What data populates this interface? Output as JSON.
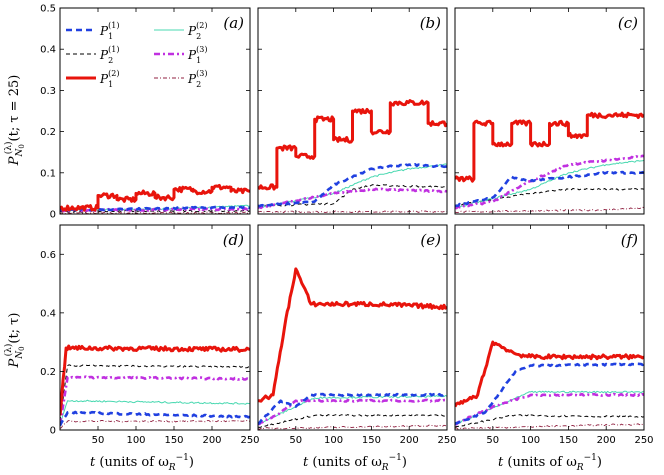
{
  "chart_data": {
    "type": "line",
    "figure": "6-panel grid of occupation probabilities P vs time",
    "series_styles": [
      {
        "key": "P1_1",
        "name": "P_1^(1)",
        "color": "#2040e0",
        "dash": "6,4",
        "width": 2.6
      },
      {
        "key": "P2_1",
        "name": "P_2^(1)",
        "color": "#000000",
        "dash": "4,3",
        "width": 1.0
      },
      {
        "key": "P1_2",
        "name": "P_1^(2)",
        "color": "#e8140c",
        "dash": "",
        "width": 3.0
      },
      {
        "key": "P2_2",
        "name": "P_2^(2)",
        "color": "#48d8b0",
        "dash": "",
        "width": 1.0
      },
      {
        "key": "P1_3",
        "name": "P_1^(3)",
        "color": "#c030e0",
        "dash": "6,3,2,3",
        "width": 2.6
      },
      {
        "key": "P2_3",
        "name": "P_2^(3)",
        "color": "#902040",
        "dash": "4,2,1,2",
        "width": 0.9
      }
    ],
    "legend": [
      {
        "base": "P",
        "sub": "1",
        "sup": "(1)"
      },
      {
        "base": "P",
        "sub": "2",
        "sup": "(1)"
      },
      {
        "base": "P",
        "sub": "1",
        "sup": "(2)"
      },
      {
        "base": "P",
        "sub": "2",
        "sup": "(2)"
      },
      {
        "base": "P",
        "sub": "1",
        "sup": "(3)"
      },
      {
        "base": "P",
        "sub": "2",
        "sup": "(3)"
      }
    ],
    "rows": [
      {
        "ylabel": "P_N0^(λ)(t; τ = 25)",
        "ylim": [
          0,
          0.5
        ],
        "yticks": [
          "0",
          "0.1",
          "0.2",
          "0.3",
          "0.4",
          "0.5"
        ],
        "ytick_values": [
          0,
          0.1,
          0.2,
          0.3,
          0.4,
          0.5
        ]
      },
      {
        "ylabel": "P_N0^(λ)(t; τ)",
        "ylim": [
          0,
          0.7
        ],
        "yticks": [
          "0",
          "0.2",
          "0.4",
          "0.6"
        ],
        "ytick_values": [
          0,
          0.2,
          0.4,
          0.6
        ]
      }
    ],
    "xlim": [
      0,
      250
    ],
    "xticks": [
      "50",
      "100",
      "150",
      "200",
      "250"
    ],
    "xtick_values": [
      50,
      100,
      150,
      200,
      250
    ],
    "xlabel": "t (units of ω_R^-1)",
    "panels": [
      {
        "label": "(a)",
        "row": 0,
        "col": 0,
        "series": {
          "P1_2": [
            [
              0,
              0.015
            ],
            [
              50,
              0.015
            ],
            [
              50,
              0.045
            ],
            [
              75,
              0.045
            ],
            [
              75,
              0.035
            ],
            [
              100,
              0.035
            ],
            [
              100,
              0.05
            ],
            [
              125,
              0.05
            ],
            [
              125,
              0.04
            ],
            [
              150,
              0.04
            ],
            [
              150,
              0.06
            ],
            [
              175,
              0.06
            ],
            [
              175,
              0.055
            ],
            [
              200,
              0.055
            ],
            [
              200,
              0.065
            ],
            [
              225,
              0.065
            ],
            [
              225,
              0.055
            ],
            [
              250,
              0.055
            ]
          ],
          "P1_1": [
            [
              0,
              0.01
            ],
            [
              100,
              0.012
            ],
            [
              150,
              0.014
            ],
            [
              200,
              0.016
            ],
            [
              250,
              0.015
            ]
          ],
          "P2_1": [
            [
              0,
              0.006
            ],
            [
              250,
              0.008
            ]
          ],
          "P2_2": [
            [
              0,
              0.008
            ],
            [
              125,
              0.012
            ],
            [
              250,
              0.02
            ]
          ],
          "P1_3": [
            [
              0,
              0.009
            ],
            [
              250,
              0.012
            ]
          ],
          "P2_3": [
            [
              0,
              0.002
            ],
            [
              250,
              0.003
            ]
          ]
        }
      },
      {
        "label": "(b)",
        "row": 0,
        "col": 1,
        "series": {
          "P1_2": [
            [
              0,
              0.065
            ],
            [
              25,
              0.065
            ],
            [
              25,
              0.16
            ],
            [
              50,
              0.16
            ],
            [
              50,
              0.14
            ],
            [
              75,
              0.14
            ],
            [
              75,
              0.23
            ],
            [
              100,
              0.23
            ],
            [
              100,
              0.18
            ],
            [
              125,
              0.18
            ],
            [
              125,
              0.25
            ],
            [
              150,
              0.25
            ],
            [
              150,
              0.2
            ],
            [
              175,
              0.2
            ],
            [
              175,
              0.27
            ],
            [
              225,
              0.27
            ],
            [
              225,
              0.22
            ],
            [
              250,
              0.22
            ]
          ],
          "P1_1": [
            [
              0,
              0.02
            ],
            [
              75,
              0.03
            ],
            [
              100,
              0.07
            ],
            [
              125,
              0.09
            ],
            [
              150,
              0.11
            ],
            [
              200,
              0.12
            ],
            [
              250,
              0.115
            ]
          ],
          "P2_1": [
            [
              0,
              0.02
            ],
            [
              100,
              0.025
            ],
            [
              125,
              0.06
            ],
            [
              150,
              0.07
            ],
            [
              250,
              0.065
            ]
          ],
          "P2_2": [
            [
              0,
              0.015
            ],
            [
              100,
              0.05
            ],
            [
              150,
              0.09
            ],
            [
              200,
              0.11
            ],
            [
              250,
              0.12
            ]
          ],
          "P1_3": [
            [
              0,
              0.015
            ],
            [
              100,
              0.05
            ],
            [
              150,
              0.06
            ],
            [
              250,
              0.055
            ]
          ],
          "P2_3": [
            [
              0,
              0.005
            ],
            [
              250,
              0.006
            ]
          ]
        }
      },
      {
        "label": "(c)",
        "row": 0,
        "col": 2,
        "series": {
          "P1_2": [
            [
              0,
              0.085
            ],
            [
              25,
              0.085
            ],
            [
              25,
              0.22
            ],
            [
              50,
              0.22
            ],
            [
              50,
              0.17
            ],
            [
              75,
              0.17
            ],
            [
              75,
              0.22
            ],
            [
              100,
              0.22
            ],
            [
              100,
              0.17
            ],
            [
              125,
              0.17
            ],
            [
              125,
              0.22
            ],
            [
              150,
              0.22
            ],
            [
              150,
              0.19
            ],
            [
              175,
              0.19
            ],
            [
              175,
              0.24
            ],
            [
              225,
              0.24
            ],
            [
              225,
              0.24
            ],
            [
              250,
              0.24
            ]
          ],
          "P1_1": [
            [
              0,
              0.02
            ],
            [
              50,
              0.04
            ],
            [
              75,
              0.09
            ],
            [
              100,
              0.08
            ],
            [
              150,
              0.09
            ],
            [
              200,
              0.1
            ],
            [
              250,
              0.1
            ]
          ],
          "P2_1": [
            [
              0,
              0.02
            ],
            [
              100,
              0.05
            ],
            [
              150,
              0.06
            ],
            [
              250,
              0.06
            ]
          ],
          "P2_2": [
            [
              0,
              0.015
            ],
            [
              100,
              0.06
            ],
            [
              150,
              0.1
            ],
            [
              200,
              0.12
            ],
            [
              250,
              0.13
            ]
          ],
          "P1_3": [
            [
              0,
              0.015
            ],
            [
              50,
              0.03
            ],
            [
              100,
              0.08
            ],
            [
              150,
              0.12
            ],
            [
              250,
              0.14
            ]
          ],
          "P2_3": [
            [
              0,
              0.005
            ],
            [
              200,
              0.01
            ],
            [
              250,
              0.015
            ]
          ]
        }
      },
      {
        "label": "(d)",
        "row": 1,
        "col": 0,
        "series": {
          "P1_2": [
            [
              0,
              0.05
            ],
            [
              8,
              0.28
            ],
            [
              15,
              0.28
            ],
            [
              250,
              0.275
            ]
          ],
          "P2_1": [
            [
              0,
              0.03
            ],
            [
              10,
              0.22
            ],
            [
              250,
              0.215
            ]
          ],
          "P1_3": [
            [
              0,
              0.02
            ],
            [
              10,
              0.18
            ],
            [
              250,
              0.175
            ]
          ],
          "P2_2": [
            [
              0,
              0.02
            ],
            [
              10,
              0.1
            ],
            [
              250,
              0.09
            ]
          ],
          "P1_1": [
            [
              0,
              0.015
            ],
            [
              10,
              0.06
            ],
            [
              250,
              0.045
            ]
          ],
          "P2_3": [
            [
              0,
              0.005
            ],
            [
              10,
              0.03
            ],
            [
              250,
              0.03
            ]
          ]
        }
      },
      {
        "label": "(e)",
        "row": 1,
        "col": 1,
        "series": {
          "P1_2": [
            [
              0,
              0.1
            ],
            [
              20,
              0.12
            ],
            [
              35,
              0.35
            ],
            [
              50,
              0.55
            ],
            [
              70,
              0.43
            ],
            [
              150,
              0.43
            ],
            [
              250,
              0.42
            ]
          ],
          "P1_1": [
            [
              0,
              0.02
            ],
            [
              30,
              0.1
            ],
            [
              50,
              0.08
            ],
            [
              70,
              0.12
            ],
            [
              250,
              0.12
            ]
          ],
          "P1_3": [
            [
              0,
              0.02
            ],
            [
              30,
              0.06
            ],
            [
              50,
              0.1
            ],
            [
              75,
              0.1
            ],
            [
              250,
              0.1
            ]
          ],
          "P2_2": [
            [
              0,
              0.02
            ],
            [
              75,
              0.11
            ],
            [
              250,
              0.115
            ]
          ],
          "P2_1": [
            [
              0,
              0.01
            ],
            [
              75,
              0.05
            ],
            [
              250,
              0.05
            ]
          ],
          "P2_3": [
            [
              0,
              0.005
            ],
            [
              250,
              0.015
            ]
          ]
        }
      },
      {
        "label": "(f)",
        "row": 1,
        "col": 2,
        "series": {
          "P1_2": [
            [
              0,
              0.08
            ],
            [
              30,
              0.12
            ],
            [
              50,
              0.3
            ],
            [
              80,
              0.26
            ],
            [
              100,
              0.25
            ],
            [
              250,
              0.25
            ]
          ],
          "P1_1": [
            [
              0,
              0.02
            ],
            [
              40,
              0.06
            ],
            [
              80,
              0.2
            ],
            [
              100,
              0.22
            ],
            [
              250,
              0.225
            ]
          ],
          "P1_3": [
            [
              0,
              0.02
            ],
            [
              50,
              0.08
            ],
            [
              100,
              0.12
            ],
            [
              250,
              0.12
            ]
          ],
          "P2_2": [
            [
              0,
              0.02
            ],
            [
              100,
              0.13
            ],
            [
              250,
              0.13
            ]
          ],
          "P2_1": [
            [
              0,
              0.01
            ],
            [
              75,
              0.05
            ],
            [
              250,
              0.045
            ]
          ],
          "P2_3": [
            [
              0,
              0.005
            ],
            [
              250,
              0.02
            ]
          ]
        }
      }
    ]
  },
  "text": {
    "ylabel_top_base": "P",
    "ylabel_top_sub": "N",
    "ylabel_top_subsub": "0",
    "ylabel_top_sup": "(λ)",
    "ylabel_top_args": "(t; τ = 25)",
    "ylabel_bottom_args": "(t; τ)",
    "xlabel_t": "t",
    "xlabel_units": "(units of ω",
    "xlabel_sub": "R",
    "xlabel_sup": "−1",
    "xlabel_close": ")"
  }
}
